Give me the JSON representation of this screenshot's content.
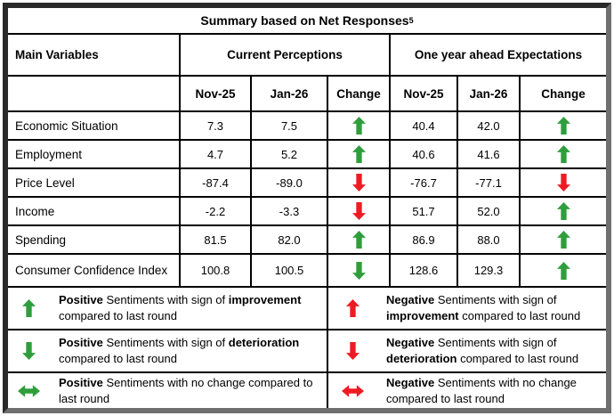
{
  "title": "Summary based on Net Responses",
  "title_superscript": "5",
  "columns": {
    "main": "Main Variables",
    "group1": "Current Perceptions",
    "group2": "One year ahead Expectations",
    "sub1": "Nov-25",
    "sub2": "Jan-26",
    "sub3": "Change",
    "sub4": "Nov-25",
    "sub5": "Jan-26",
    "sub6": "Change"
  },
  "rows": [
    {
      "variable": "Economic Situation",
      "cp_nov": "7.3",
      "cp_jan": "7.5",
      "cp_change": {
        "dir": "up",
        "sentiment": "positive"
      },
      "ex_nov": "40.4",
      "ex_jan": "42.0",
      "ex_change": {
        "dir": "up",
        "sentiment": "positive"
      }
    },
    {
      "variable": "Employment",
      "cp_nov": "4.7",
      "cp_jan": "5.2",
      "cp_change": {
        "dir": "up",
        "sentiment": "positive"
      },
      "ex_nov": "40.6",
      "ex_jan": "41.6",
      "ex_change": {
        "dir": "up",
        "sentiment": "positive"
      }
    },
    {
      "variable": "Price Level",
      "cp_nov": "-87.4",
      "cp_jan": "-89.0",
      "cp_change": {
        "dir": "down",
        "sentiment": "negative"
      },
      "ex_nov": "-76.7",
      "ex_jan": "-77.1",
      "ex_change": {
        "dir": "down",
        "sentiment": "negative"
      }
    },
    {
      "variable": "Income",
      "cp_nov": "-2.2",
      "cp_jan": "-3.3",
      "cp_change": {
        "dir": "down",
        "sentiment": "negative"
      },
      "ex_nov": "51.7",
      "ex_jan": "52.0",
      "ex_change": {
        "dir": "up",
        "sentiment": "positive"
      }
    },
    {
      "variable": "Spending",
      "cp_nov": "81.5",
      "cp_jan": "82.0",
      "cp_change": {
        "dir": "up",
        "sentiment": "positive"
      },
      "ex_nov": "86.9",
      "ex_jan": "88.0",
      "ex_change": {
        "dir": "up",
        "sentiment": "positive"
      }
    },
    {
      "variable": "Consumer Confidence Index",
      "cp_nov": "100.8",
      "cp_jan": "100.5",
      "cp_change": {
        "dir": "down",
        "sentiment": "positive"
      },
      "ex_nov": "128.6",
      "ex_jan": "129.3",
      "ex_change": {
        "dir": "up",
        "sentiment": "positive"
      }
    }
  ],
  "legend": {
    "positive": [
      {
        "dir": "up",
        "sentiment": "positive",
        "bold1": "Positive",
        "text1": " Sentiments with sign of ",
        "bold2": "improvement",
        "text2": " compared to last round"
      },
      {
        "dir": "down",
        "sentiment": "positive",
        "bold1": "Positive",
        "text1": " Sentiments with sign of ",
        "bold2": "deterioration",
        "text2": " compared to last round"
      },
      {
        "dir": "both",
        "sentiment": "positive",
        "bold1": "Positive",
        "text1": " Sentiments with no change compared to last round",
        "bold2": "",
        "text2": ""
      }
    ],
    "negative": [
      {
        "dir": "up",
        "sentiment": "negative",
        "bold1": "Negative",
        "text1": " Sentiments with sign of ",
        "bold2": "improvement",
        "text2": " compared to last round"
      },
      {
        "dir": "down",
        "sentiment": "negative",
        "bold1": "Negative",
        "text1": " Sentiments with sign of ",
        "bold2": "deterioration",
        "text2": " compared to last round"
      },
      {
        "dir": "both",
        "sentiment": "negative",
        "bold1": "Negative",
        "text1": " Sentiments with no change compared to last round",
        "bold2": "",
        "text2": ""
      }
    ]
  },
  "colors": {
    "positive_arrow": "#2e9e3c",
    "negative_arrow": "#ed1c24"
  }
}
